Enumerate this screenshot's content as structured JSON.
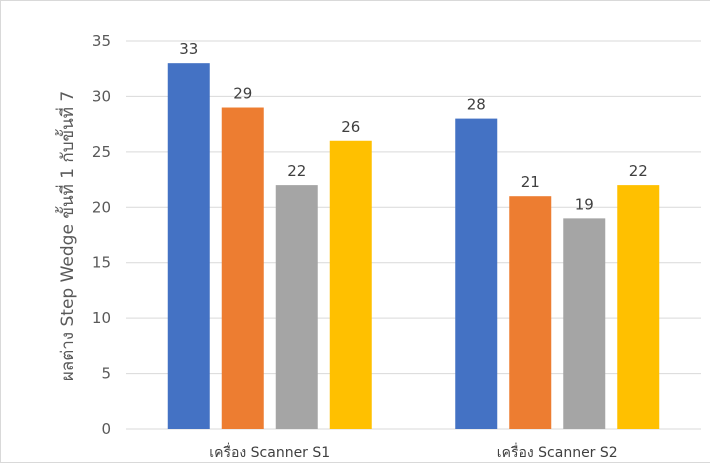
{
  "chart_data": {
    "type": "bar",
    "title": "",
    "xlabel": "",
    "ylabel": "ผลต่าง Step Wedge ขั้นที่ 1 กับขั้นที่ 7",
    "categories": [
      "เครื่อง Scanner S1",
      "เครื่อง Scanner S2"
    ],
    "series": [
      {
        "values": [
          33,
          28
        ],
        "color": "#4472c4"
      },
      {
        "values": [
          29,
          21
        ],
        "color": "#ed7d31"
      },
      {
        "values": [
          22,
          19
        ],
        "color": "#a5a5a5"
      },
      {
        "values": [
          26,
          22
        ],
        "color": "#ffc000"
      }
    ],
    "ylim": [
      0,
      35
    ],
    "yticks": [
      0,
      5,
      10,
      15,
      20,
      25,
      30,
      35
    ],
    "grid": true,
    "legend": "none",
    "data_labels": true,
    "gridline_color": "#d9d9d9"
  }
}
